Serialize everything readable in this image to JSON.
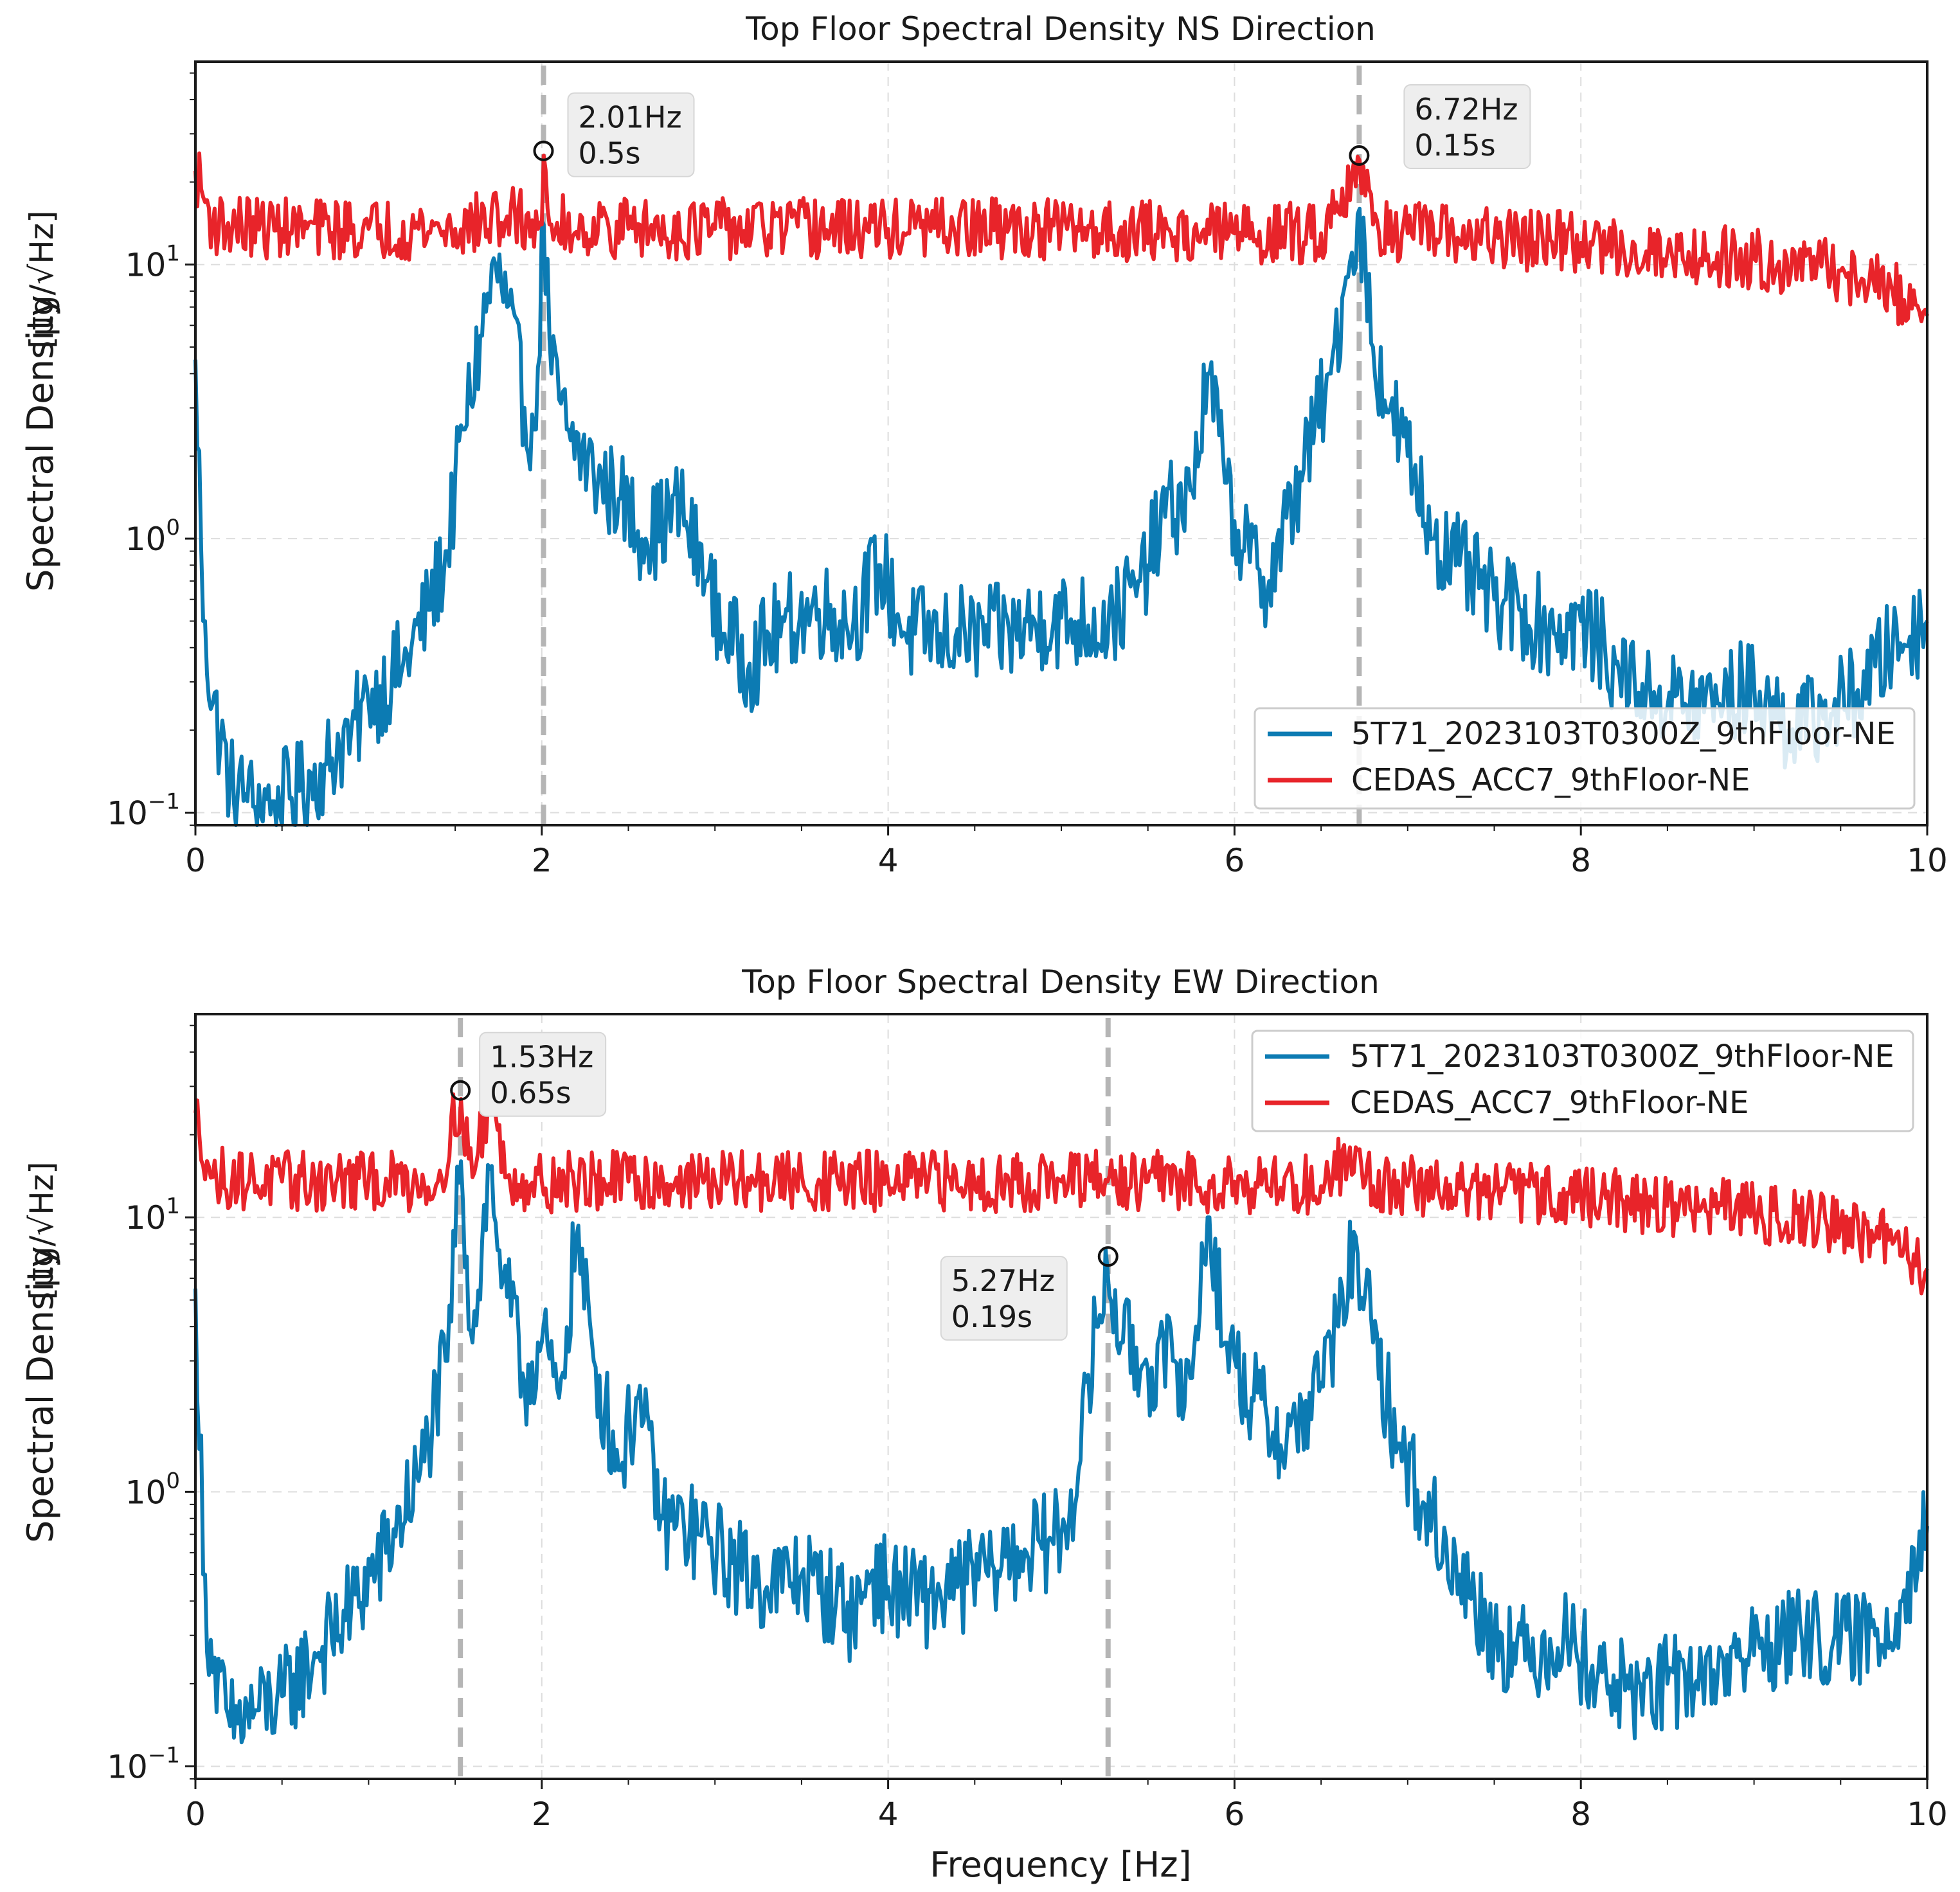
{
  "chart_data": [
    {
      "type": "line",
      "title": "Top Floor Spectral Density NS Direction",
      "xlabel": "",
      "ylabel": "Spectral Density",
      "ylabel_unit": "[μg/√Hz]",
      "yscale": "log",
      "xlim": [
        0,
        10
      ],
      "ylim": [
        0.09,
        55
      ],
      "x_ticks": [
        "0",
        "2",
        "4",
        "6",
        "8",
        "10"
      ],
      "y_ticks": [
        {
          "value": 10,
          "base": "10",
          "exp": "1"
        },
        {
          "value": 1,
          "base": "10",
          "exp": "0"
        },
        {
          "value": 0.1,
          "base": "10",
          "exp": "−1"
        }
      ],
      "grid": true,
      "legend_position": "lower right",
      "series": [
        {
          "name": "5T71_2023103T0300Z_9thFloor-NE",
          "color": "#0c7bb3",
          "x": [
            0,
            0.05,
            0.1,
            0.2,
            0.3,
            0.45,
            0.6,
            0.75,
            0.9,
            1.0,
            1.2,
            1.35,
            1.45,
            1.55,
            1.65,
            1.73,
            1.8,
            1.9,
            1.96,
            2.01,
            2.06,
            2.15,
            2.3,
            2.45,
            2.6,
            2.8,
            2.95,
            3.05,
            3.2,
            3.4,
            3.6,
            3.8,
            3.95,
            4.1,
            4.3,
            4.5,
            4.7,
            4.9,
            5.1,
            5.3,
            5.45,
            5.6,
            5.75,
            5.85,
            5.95,
            6.05,
            6.2,
            6.4,
            6.55,
            6.65,
            6.72,
            6.8,
            6.9,
            7.0,
            7.15,
            7.3,
            7.5,
            7.65,
            7.85,
            8.0,
            8.2,
            8.4,
            8.6,
            8.8,
            9.0,
            9.2,
            9.4,
            9.6,
            9.8,
            10.0
          ],
          "values": [
            4.5,
            0.5,
            0.25,
            0.13,
            0.11,
            0.11,
            0.12,
            0.15,
            0.2,
            0.25,
            0.35,
            0.55,
            0.9,
            2.5,
            5.5,
            10,
            7,
            3,
            2.5,
            14,
            4,
            2.5,
            1.7,
            1.4,
            1.0,
            1.3,
            0.7,
            0.45,
            0.35,
            0.5,
            0.55,
            0.5,
            0.8,
            0.45,
            0.45,
            0.45,
            0.45,
            0.5,
            0.5,
            0.5,
            0.7,
            1.2,
            1.5,
            4.0,
            1.6,
            0.9,
            0.7,
            1.8,
            4.0,
            9.0,
            16,
            5,
            3.0,
            2.0,
            1.0,
            0.8,
            0.6,
            0.55,
            0.45,
            0.5,
            0.35,
            0.28,
            0.25,
            0.25,
            0.3,
            0.2,
            0.22,
            0.28,
            0.4,
            0.5
          ]
        },
        {
          "name": "CEDAS_ACC7_9thFloor-NE",
          "color": "#e8242a",
          "x": [
            0,
            0.1,
            0.5,
            1.0,
            1.5,
            1.8,
            2.0,
            2.01,
            2.05,
            2.5,
            3.0,
            4.0,
            5.0,
            6.0,
            6.5,
            6.72,
            6.8,
            7.0,
            7.5,
            8.0,
            8.5,
            9.0,
            9.5,
            9.8,
            10.0
          ],
          "values": [
            22,
            14,
            13.5,
            13.5,
            13.5,
            15,
            14,
            25,
            14,
            13.5,
            13.5,
            13.5,
            13.5,
            13,
            13,
            24,
            14,
            13,
            12.5,
            12,
            11,
            10.5,
            9.5,
            8,
            6.5
          ]
        }
      ],
      "annotations": [
        {
          "x": 2.01,
          "y": 26,
          "line1": "2.01Hz",
          "line2": "0.5s"
        },
        {
          "x": 6.72,
          "y": 25,
          "line1": "6.72Hz",
          "line2": "0.15s"
        }
      ]
    },
    {
      "type": "line",
      "title": "Top Floor Spectral Density EW Direction",
      "xlabel": "Frequency [Hz]",
      "ylabel": "Spectral Density",
      "ylabel_unit": "[μg/√Hz]",
      "yscale": "log",
      "xlim": [
        0,
        10
      ],
      "ylim": [
        0.09,
        55
      ],
      "x_ticks": [
        "0",
        "2",
        "4",
        "6",
        "8",
        "10"
      ],
      "y_ticks": [
        {
          "value": 10,
          "base": "10",
          "exp": "1"
        },
        {
          "value": 1,
          "base": "10",
          "exp": "0"
        },
        {
          "value": 0.1,
          "base": "10",
          "exp": "−1"
        }
      ],
      "grid": true,
      "legend_position": "upper right",
      "series": [
        {
          "name": "5T71_2023103T0300Z_9thFloor-NE",
          "color": "#0c7bb3",
          "x": [
            0,
            0.05,
            0.1,
            0.2,
            0.35,
            0.5,
            0.7,
            0.9,
            1.1,
            1.3,
            1.45,
            1.53,
            1.6,
            1.7,
            1.78,
            1.9,
            2.0,
            2.1,
            2.2,
            2.3,
            2.45,
            2.55,
            2.7,
            2.9,
            3.1,
            3.3,
            3.5,
            3.7,
            3.8,
            3.9,
            4.0,
            4.2,
            4.4,
            4.6,
            4.8,
            5.0,
            5.1,
            5.2,
            5.27,
            5.35,
            5.5,
            5.65,
            5.75,
            5.85,
            5.95,
            6.1,
            6.3,
            6.5,
            6.6,
            6.7,
            6.8,
            6.95,
            7.1,
            7.3,
            7.5,
            7.7,
            7.9,
            8.1,
            8.3,
            8.5,
            8.7,
            8.9,
            9.1,
            9.3,
            9.5,
            9.7,
            9.85,
            10.0
          ],
          "values": [
            5.5,
            0.5,
            0.22,
            0.14,
            0.16,
            0.18,
            0.25,
            0.38,
            0.6,
            1.2,
            3.0,
            16,
            3.5,
            15,
            6,
            2.5,
            3.5,
            2.2,
            8.5,
            3.0,
            1.2,
            2.2,
            0.8,
            0.7,
            0.55,
            0.45,
            0.5,
            0.4,
            0.35,
            0.5,
            0.45,
            0.4,
            0.45,
            0.55,
            0.6,
            0.7,
            1.2,
            4.0,
            6.5,
            3.5,
            2.8,
            3.0,
            2.6,
            10,
            3.5,
            2.2,
            1.5,
            2.5,
            4.0,
            8.5,
            3.5,
            1.5,
            0.9,
            0.5,
            0.3,
            0.25,
            0.3,
            0.22,
            0.18,
            0.2,
            0.22,
            0.25,
            0.28,
            0.3,
            0.28,
            0.3,
            0.4,
            0.75
          ]
        },
        {
          "name": "CEDAS_ACC7_9thFloor-NE",
          "color": "#e8242a",
          "x": [
            0,
            0.1,
            0.5,
            1.0,
            1.4,
            1.53,
            1.6,
            1.7,
            1.8,
            2.0,
            2.5,
            3.0,
            4.0,
            5.0,
            5.27,
            5.5,
            6.0,
            6.5,
            6.7,
            6.8,
            7.0,
            7.5,
            8.0,
            8.5,
            9.0,
            9.5,
            9.8,
            10.0
          ],
          "values": [
            24,
            14,
            13.5,
            13.5,
            13.5,
            27,
            14,
            28,
            14,
            13.5,
            13.5,
            13.5,
            13.5,
            13.5,
            13.5,
            13.5,
            13.5,
            13,
            18,
            13,
            13,
            12.5,
            12,
            11,
            10.5,
            9.5,
            8,
            6.5
          ]
        }
      ],
      "annotations": [
        {
          "x": 1.53,
          "y": 29,
          "line1": "1.53Hz",
          "line2": "0.65s"
        },
        {
          "x": 5.27,
          "y": 7.2,
          "line1": "5.27Hz",
          "line2": "0.19s"
        }
      ]
    }
  ]
}
